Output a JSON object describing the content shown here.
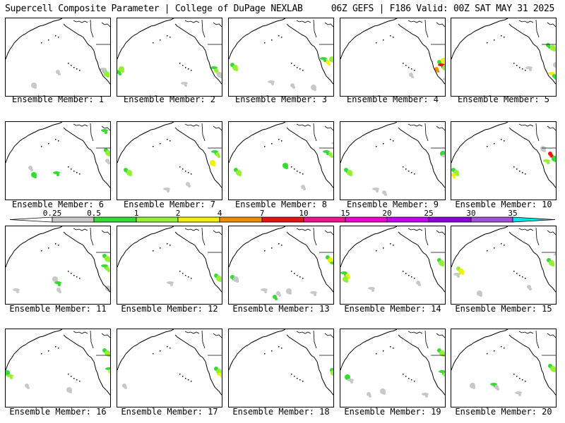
{
  "header": {
    "title": "Supercell Composite Parameter | College of DuPage NEXLAB",
    "run_info": "06Z GEFS | F186 Valid: 00Z SAT MAY 31 2025"
  },
  "panel_label_prefix": "Ensemble Member:",
  "members": [
    {
      "label": "Ensemble Member: 1"
    },
    {
      "label": "Ensemble Member: 2"
    },
    {
      "label": "Ensemble Member: 3"
    },
    {
      "label": "Ensemble Member: 4"
    },
    {
      "label": "Ensemble Member: 5"
    },
    {
      "label": "Ensemble Member: 6"
    },
    {
      "label": "Ensemble Member: 7"
    },
    {
      "label": "Ensemble Member: 8"
    },
    {
      "label": "Ensemble Member: 9"
    },
    {
      "label": "Ensemble Member: 10"
    },
    {
      "label": "Ensemble Member: 11"
    },
    {
      "label": "Ensemble Member: 12"
    },
    {
      "label": "Ensemble Member: 13"
    },
    {
      "label": "Ensemble Member: 14"
    },
    {
      "label": "Ensemble Member: 15"
    },
    {
      "label": "Ensemble Member: 16"
    },
    {
      "label": "Ensemble Member: 17"
    },
    {
      "label": "Ensemble Member: 18"
    },
    {
      "label": "Ensemble Member: 19"
    },
    {
      "label": "Ensemble Member: 20"
    }
  ],
  "colorbar": {
    "levels": [
      "0.25",
      "0.5",
      "1",
      "2",
      "4",
      "7",
      "10",
      "15",
      "20",
      "25",
      "30",
      "35"
    ],
    "colors": [
      "#c8c8c8",
      "#32dc32",
      "#96f032",
      "#f0f000",
      "#f08c00",
      "#e61414",
      "#f0148c",
      "#f000d2",
      "#c800f0",
      "#8c00dc",
      "#a050dc"
    ],
    "left_end_color": "#ffffff",
    "right_end_color": "#00e6e6"
  },
  "fill_colors": {
    "gray": "#c8c8c8",
    "green": "#32dc32",
    "lime": "#96f032",
    "yellow": "#f0f000",
    "orange": "#f08c00",
    "red": "#e61414"
  }
}
